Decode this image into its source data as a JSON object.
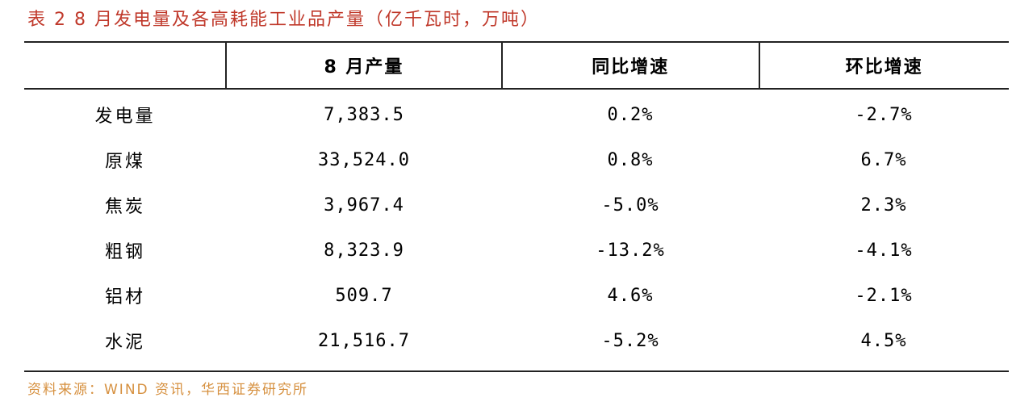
{
  "title": "表 2 8 月发电量及各高耗能工业品产量（亿千瓦时，万吨）",
  "table": {
    "headers": [
      "",
      "8 月产量",
      "同比增速",
      "环比增速"
    ],
    "rows": [
      {
        "name": "发电量",
        "output": "7,383.5",
        "yoy": "0.2%",
        "mom": "-2.7%"
      },
      {
        "name": "原煤",
        "output": "33,524.0",
        "yoy": "0.8%",
        "mom": "6.7%"
      },
      {
        "name": "焦炭",
        "output": "3,967.4",
        "yoy": "-5.0%",
        "mom": "2.3%"
      },
      {
        "name": "粗钢",
        "output": "8,323.9",
        "yoy": "-13.2%",
        "mom": "-4.1%"
      },
      {
        "name": "铝材",
        "output": "509.7",
        "yoy": "4.6%",
        "mom": "-2.1%"
      },
      {
        "name": "水泥",
        "output": "21,516.7",
        "yoy": "-5.2%",
        "mom": "4.5%"
      }
    ]
  },
  "source": "资料来源：WIND 资讯，华西证券研究所",
  "colors": {
    "title": "#c0392b",
    "source": "#d6903f",
    "rule": "#222222"
  }
}
